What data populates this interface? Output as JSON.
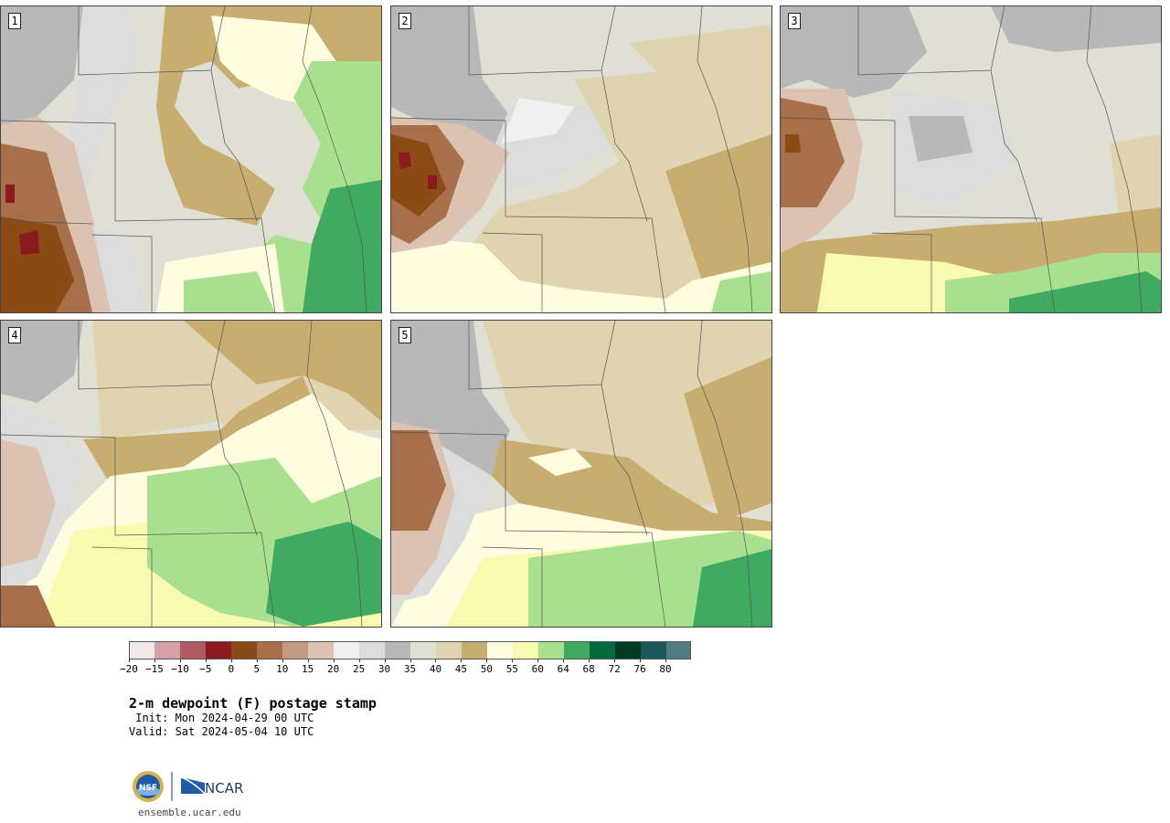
{
  "panels": [
    {
      "label": "1"
    },
    {
      "label": "2"
    },
    {
      "label": "3"
    },
    {
      "label": "4"
    },
    {
      "label": "5"
    }
  ],
  "colorbar": {
    "colors": [
      "#f2e8ea",
      "#d4a3aa",
      "#b05a62",
      "#8a1a20",
      "#8c4a14",
      "#a8704a",
      "#c49a80",
      "#dcc2b0",
      "#f0f0f0",
      "#dcdcdc",
      "#b8b8b8",
      "#e0dfd3",
      "#e0d4b0",
      "#c8ad70",
      "#fffde0",
      "#f8fab0",
      "#a8e090",
      "#40aa60",
      "#006a3a",
      "#003a20",
      "#1d5858",
      "#4f7c80"
    ],
    "ticks": [
      "−20",
      "−15",
      "−10",
      "−5",
      "0",
      "5",
      "10",
      "15",
      "20",
      "25",
      "30",
      "35",
      "40",
      "45",
      "50",
      "55",
      "60",
      "64",
      "68",
      "72",
      "76",
      "80"
    ]
  },
  "title": "2-m dewpoint (F) postage stamp",
  "init": " Init: Mon 2024-04-29 00 UTC",
  "valid": "Valid: Sat 2024-05-04 10 UTC",
  "logo": {
    "nsf_text": "NSF",
    "ncar_text": "NCAR"
  },
  "footer_url": "ensemble.ucar.edu",
  "map_colors": {
    "base": "#e0dfd3",
    "gray_light": "#dcdcdc",
    "gray": "#b8b8b8",
    "tan": "#e0d4b0",
    "tan_dark": "#c8ad70",
    "yellow_pale": "#fffde0",
    "yellow": "#f8fab0",
    "green_light": "#a8e090",
    "green": "#40aa60",
    "brown_light": "#dcc2b0",
    "brown": "#a8704a",
    "brown_dark": "#8c4a14",
    "maroon": "#8a1a20",
    "boundary": "#555555"
  }
}
